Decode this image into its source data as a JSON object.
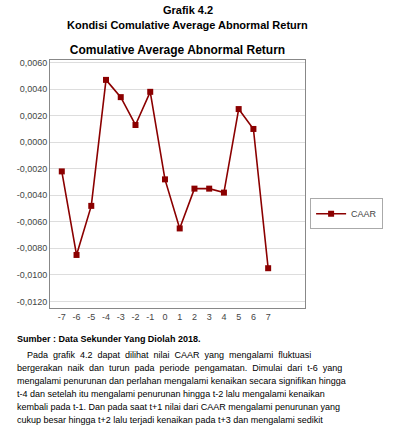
{
  "chart_data": {
    "type": "line",
    "title": "Comulative Average Abnormal Return",
    "annotations": [
      "Grafik 4.2",
      "Kondisi Comulative Average Abnormal Return",
      "Sumber : Data Sekunder Yang Diolah 2018.",
      "    Pada  grafik  4.2  dapat  dilihat  nilai  CAAR  yang  mengalami  fluktuasi",
      "bergerakan  naik  dan  turun  pada  periode  pengamatan.  Dimulai  dari  t-6  yang",
      "mengalami penurunan dan perlahan mengalami kenaikan secara signifikan hingga",
      "t-4 dan setelah itu mengalami penurunan hingga t-2 lalu mengalami kenaikan",
      "kembali pada t-1. Dan pada saat t+1 nilai dari CAAR mengalami penurunan yang",
      "cukup besar hingga t+2 lalu terjadi kenaikan pada t+3 dan mengalami sedikit"
    ],
    "x": [
      -7,
      -6,
      -5,
      -4,
      -3,
      -2,
      -1,
      0,
      1,
      2,
      3,
      4,
      5,
      6,
      7
    ],
    "series": [
      {
        "name": "CAAR",
        "color": "#8B0000",
        "marker": "square",
        "values": [
          -0.0022,
          -0.0085,
          -0.0048,
          0.0047,
          0.0034,
          0.0013,
          0.0038,
          -0.0028,
          -0.0065,
          -0.0035,
          -0.0035,
          -0.0038,
          0.0025,
          0.001,
          -0.0095
        ]
      }
    ],
    "xlim": [
      -7.8,
      9.5
    ],
    "xticks": [
      -7,
      -6,
      -5,
      -4,
      -3,
      -2,
      -1,
      0,
      1,
      2,
      3,
      4,
      5,
      6,
      7
    ],
    "ylim": [
      -0.0125,
      0.0062
    ],
    "yticks": [
      {
        "value": -0.012,
        "label": "-0,0120"
      },
      {
        "value": -0.01,
        "label": "-0,0100"
      },
      {
        "value": -0.008,
        "label": "-0,0080"
      },
      {
        "value": -0.006,
        "label": "-0,0060"
      },
      {
        "value": -0.004,
        "label": "-0,0040"
      },
      {
        "value": -0.002,
        "label": "-0,0020"
      },
      {
        "value": 0.0,
        "label": "0,0000"
      },
      {
        "value": 0.002,
        "label": "0,0020"
      },
      {
        "value": 0.004,
        "label": "0,0040"
      },
      {
        "value": 0.006,
        "label": "0,0060"
      }
    ],
    "grid": "y",
    "legend": "right"
  }
}
